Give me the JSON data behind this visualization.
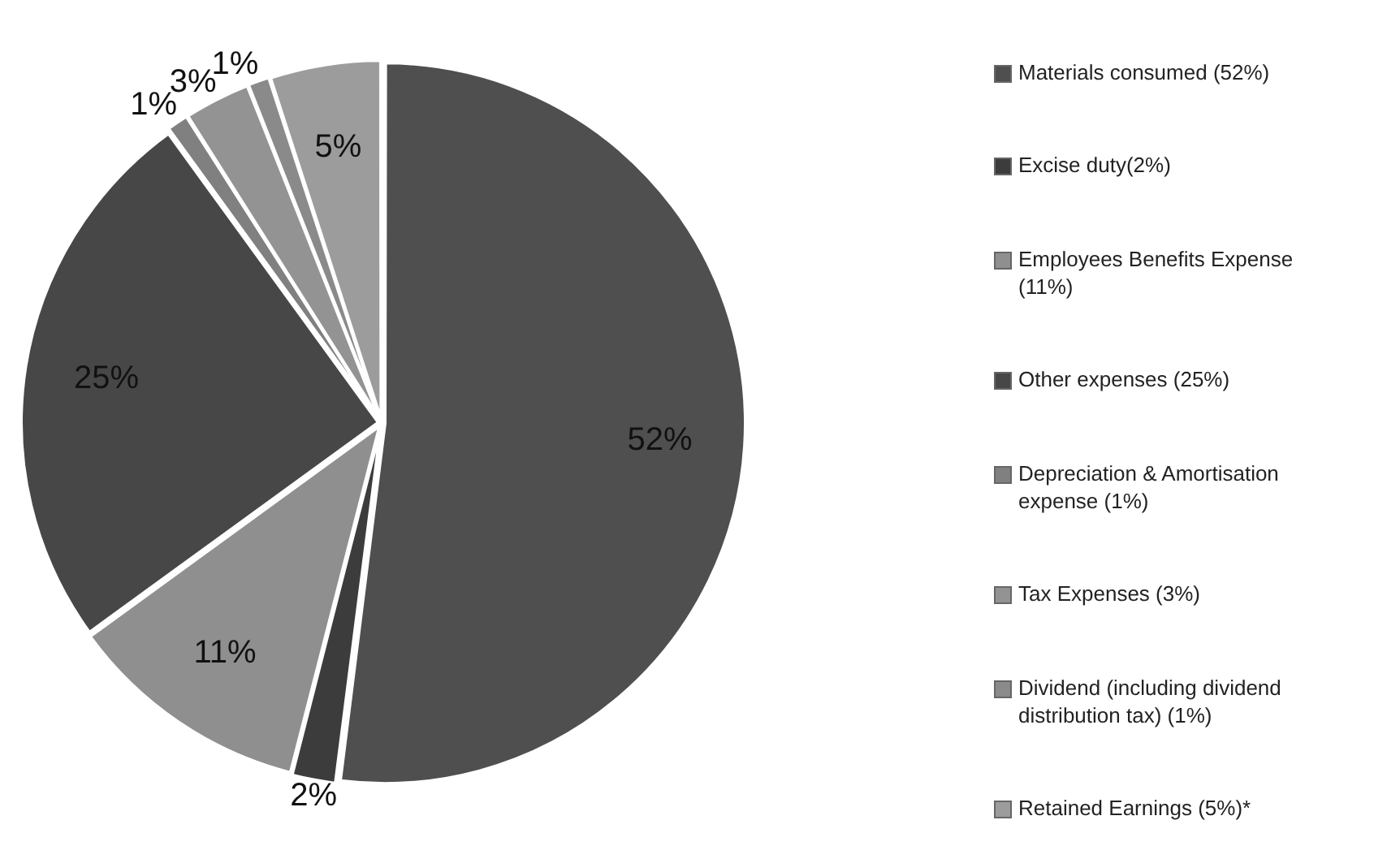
{
  "chart_data": {
    "type": "pie",
    "categories": [
      "Materials consumed (52%)",
      "Excise duty(2%)",
      "Employees Benefits Expense (11%)",
      "Other expenses (25%)",
      "Depreciation & Amortisation expense (1%)",
      "Tax Expenses (3%)",
      "Dividend (including dividend distribution tax) (1%)",
      "Retained Earnings (5%)*"
    ],
    "values": [
      52,
      2,
      11,
      25,
      1,
      3,
      1,
      5
    ],
    "colors": [
      "#4f4f4f",
      "#3c3c3c",
      "#8f8f8f",
      "#474747",
      "#808080",
      "#939393",
      "#8a8a8a",
      "#9c9c9c"
    ],
    "value_labels": [
      "52%",
      "2%",
      "11%",
      "25%",
      "1%",
      "3%",
      "1%",
      "5%"
    ],
    "legend": "right"
  }
}
